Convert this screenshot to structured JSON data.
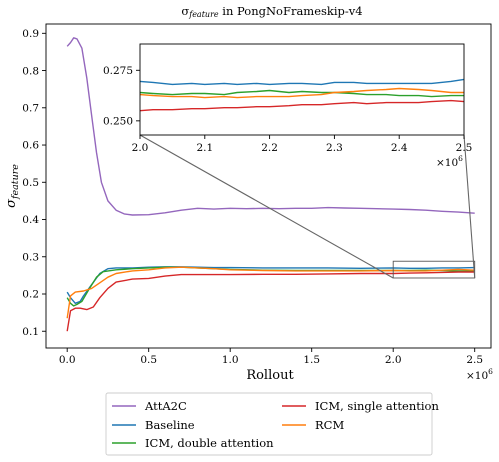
{
  "chart_data": [
    {
      "type": "line",
      "title_main": "σ",
      "title_sub": "feature",
      "title_rest": " in PongNoFrameskip-v4",
      "xlabel": "Rollout",
      "x_multiplier": "×10",
      "x_multiplier_exp": "6",
      "ylabel_main": "σ",
      "ylabel_sub": "feature",
      "xlim": [
        -0.13,
        2.6
      ],
      "ylim": [
        0.055,
        0.925
      ],
      "xticks": [
        0.0,
        0.5,
        1.0,
        1.5,
        2.0,
        2.5
      ],
      "xtick_labels": [
        "0.0",
        "0.5",
        "1.0",
        "1.5",
        "2.0",
        "2.5"
      ],
      "yticks": [
        0.1,
        0.2,
        0.3,
        0.4,
        0.5,
        0.6,
        0.7,
        0.8,
        0.9
      ],
      "ytick_labels": [
        "0.1",
        "0.2",
        "0.3",
        "0.4",
        "0.5",
        "0.6",
        "0.7",
        "0.8",
        "0.9"
      ],
      "legend_placement": "below",
      "series": [
        {
          "name": "AttA2C",
          "color": "#9467bd",
          "points": [
            [
              0.0,
              0.865
            ],
            [
              0.02,
              0.875
            ],
            [
              0.04,
              0.888
            ],
            [
              0.06,
              0.885
            ],
            [
              0.09,
              0.86
            ],
            [
              0.12,
              0.78
            ],
            [
              0.15,
              0.68
            ],
            [
              0.18,
              0.58
            ],
            [
              0.21,
              0.5
            ],
            [
              0.25,
              0.45
            ],
            [
              0.3,
              0.425
            ],
            [
              0.35,
              0.415
            ],
            [
              0.4,
              0.412
            ],
            [
              0.5,
              0.413
            ],
            [
              0.6,
              0.418
            ],
            [
              0.7,
              0.425
            ],
            [
              0.8,
              0.43
            ],
            [
              0.9,
              0.428
            ],
            [
              1.0,
              0.43
            ],
            [
              1.1,
              0.429
            ],
            [
              1.2,
              0.43
            ],
            [
              1.3,
              0.429
            ],
            [
              1.4,
              0.43
            ],
            [
              1.5,
              0.43
            ],
            [
              1.6,
              0.432
            ],
            [
              1.7,
              0.431
            ],
            [
              1.8,
              0.43
            ],
            [
              1.9,
              0.429
            ],
            [
              2.0,
              0.428
            ],
            [
              2.1,
              0.427
            ],
            [
              2.2,
              0.425
            ],
            [
              2.3,
              0.422
            ],
            [
              2.4,
              0.42
            ],
            [
              2.5,
              0.417
            ]
          ]
        },
        {
          "name": "Baseline",
          "color": "#1f77b4",
          "points": [
            [
              0.0,
              0.205
            ],
            [
              0.02,
              0.19
            ],
            [
              0.05,
              0.175
            ],
            [
              0.08,
              0.18
            ],
            [
              0.1,
              0.195
            ],
            [
              0.15,
              0.225
            ],
            [
              0.2,
              0.255
            ],
            [
              0.25,
              0.268
            ],
            [
              0.3,
              0.27
            ],
            [
              0.4,
              0.27
            ],
            [
              0.5,
              0.272
            ],
            [
              0.6,
              0.273
            ],
            [
              0.7,
              0.273
            ],
            [
              0.8,
              0.272
            ],
            [
              0.9,
              0.271
            ],
            [
              1.0,
              0.271
            ],
            [
              1.2,
              0.27
            ],
            [
              1.4,
              0.27
            ],
            [
              1.6,
              0.27
            ],
            [
              1.8,
              0.269
            ],
            [
              2.0,
              0.27
            ],
            [
              2.1,
              0.269
            ],
            [
              2.2,
              0.269
            ],
            [
              2.3,
              0.27
            ],
            [
              2.4,
              0.27
            ],
            [
              2.5,
              0.271
            ]
          ]
        },
        {
          "name": "ICM, double attention",
          "color": "#2ca02c",
          "points": [
            [
              0.0,
              0.19
            ],
            [
              0.02,
              0.175
            ],
            [
              0.04,
              0.168
            ],
            [
              0.06,
              0.172
            ],
            [
              0.09,
              0.18
            ],
            [
              0.13,
              0.21
            ],
            [
              0.18,
              0.245
            ],
            [
              0.22,
              0.26
            ],
            [
              0.3,
              0.265
            ],
            [
              0.4,
              0.268
            ],
            [
              0.5,
              0.27
            ],
            [
              0.6,
              0.272
            ],
            [
              0.7,
              0.272
            ],
            [
              0.8,
              0.27
            ],
            [
              0.9,
              0.268
            ],
            [
              1.0,
              0.266
            ],
            [
              1.2,
              0.264
            ],
            [
              1.4,
              0.263
            ],
            [
              1.6,
              0.263
            ],
            [
              1.8,
              0.263
            ],
            [
              2.0,
              0.263
            ],
            [
              2.1,
              0.263
            ],
            [
              2.2,
              0.264
            ],
            [
              2.3,
              0.263
            ],
            [
              2.4,
              0.262
            ],
            [
              2.5,
              0.262
            ]
          ]
        },
        {
          "name": "ICM, single attention",
          "color": "#d62728",
          "points": [
            [
              0.0,
              0.1
            ],
            [
              0.02,
              0.155
            ],
            [
              0.05,
              0.162
            ],
            [
              0.08,
              0.162
            ],
            [
              0.12,
              0.158
            ],
            [
              0.16,
              0.165
            ],
            [
              0.2,
              0.19
            ],
            [
              0.25,
              0.215
            ],
            [
              0.3,
              0.232
            ],
            [
              0.4,
              0.24
            ],
            [
              0.5,
              0.242
            ],
            [
              0.6,
              0.248
            ],
            [
              0.7,
              0.252
            ],
            [
              0.8,
              0.252
            ],
            [
              0.9,
              0.252
            ],
            [
              1.0,
              0.252
            ],
            [
              1.2,
              0.253
            ],
            [
              1.4,
              0.253
            ],
            [
              1.6,
              0.254
            ],
            [
              1.8,
              0.255
            ],
            [
              2.0,
              0.255
            ],
            [
              2.1,
              0.256
            ],
            [
              2.2,
              0.257
            ],
            [
              2.3,
              0.258
            ],
            [
              2.4,
              0.259
            ],
            [
              2.5,
              0.259
            ]
          ]
        },
        {
          "name": "RCM",
          "color": "#ff7f0e",
          "points": [
            [
              0.0,
              0.135
            ],
            [
              0.02,
              0.195
            ],
            [
              0.05,
              0.205
            ],
            [
              0.1,
              0.208
            ],
            [
              0.15,
              0.215
            ],
            [
              0.2,
              0.23
            ],
            [
              0.25,
              0.245
            ],
            [
              0.3,
              0.255
            ],
            [
              0.4,
              0.262
            ],
            [
              0.5,
              0.265
            ],
            [
              0.6,
              0.27
            ],
            [
              0.7,
              0.272
            ],
            [
              0.8,
              0.27
            ],
            [
              0.9,
              0.268
            ],
            [
              1.0,
              0.265
            ],
            [
              1.2,
              0.263
            ],
            [
              1.4,
              0.262
            ],
            [
              1.6,
              0.262
            ],
            [
              1.8,
              0.262
            ],
            [
              2.0,
              0.263
            ],
            [
              2.1,
              0.262
            ],
            [
              2.2,
              0.262
            ],
            [
              2.3,
              0.264
            ],
            [
              2.4,
              0.266
            ],
            [
              2.5,
              0.264
            ]
          ]
        }
      ]
    },
    {
      "type": "line",
      "role": "inset",
      "x_multiplier": "×10",
      "x_multiplier_exp": "6",
      "xlim": [
        2.0,
        2.5
      ],
      "ylim": [
        0.243,
        0.288
      ],
      "xticks": [
        2.0,
        2.1,
        2.2,
        2.3,
        2.4,
        2.5
      ],
      "xtick_labels": [
        "2.0",
        "2.1",
        "2.2",
        "2.3",
        "2.4",
        "2.5"
      ],
      "yticks": [
        0.25,
        0.275
      ],
      "ytick_labels": [
        "0.250",
        "0.275"
      ],
      "series": [
        {
          "name": "Baseline",
          "color": "#1f77b4",
          "points": [
            [
              2.0,
              0.2695
            ],
            [
              2.02,
              0.269
            ],
            [
              2.05,
              0.268
            ],
            [
              2.08,
              0.2685
            ],
            [
              2.1,
              0.268
            ],
            [
              2.13,
              0.2685
            ],
            [
              2.15,
              0.268
            ],
            [
              2.18,
              0.2685
            ],
            [
              2.2,
              0.268
            ],
            [
              2.23,
              0.2685
            ],
            [
              2.25,
              0.2685
            ],
            [
              2.28,
              0.268
            ],
            [
              2.3,
              0.269
            ],
            [
              2.33,
              0.269
            ],
            [
              2.35,
              0.2685
            ],
            [
              2.38,
              0.2685
            ],
            [
              2.4,
              0.2685
            ],
            [
              2.43,
              0.2685
            ],
            [
              2.45,
              0.2685
            ],
            [
              2.48,
              0.2695
            ],
            [
              2.5,
              0.2705
            ]
          ]
        },
        {
          "name": "ICM, double attention",
          "color": "#2ca02c",
          "points": [
            [
              2.0,
              0.264
            ],
            [
              2.02,
              0.2635
            ],
            [
              2.05,
              0.263
            ],
            [
              2.08,
              0.2635
            ],
            [
              2.1,
              0.2635
            ],
            [
              2.13,
              0.263
            ],
            [
              2.15,
              0.264
            ],
            [
              2.18,
              0.2645
            ],
            [
              2.2,
              0.265
            ],
            [
              2.23,
              0.264
            ],
            [
              2.25,
              0.2645
            ],
            [
              2.28,
              0.264
            ],
            [
              2.3,
              0.264
            ],
            [
              2.33,
              0.2635
            ],
            [
              2.35,
              0.263
            ],
            [
              2.38,
              0.263
            ],
            [
              2.4,
              0.2625
            ],
            [
              2.43,
              0.2625
            ],
            [
              2.45,
              0.262
            ],
            [
              2.48,
              0.2625
            ],
            [
              2.5,
              0.2625
            ]
          ]
        },
        {
          "name": "ICM, single attention",
          "color": "#d62728",
          "points": [
            [
              2.0,
              0.255
            ],
            [
              2.02,
              0.2555
            ],
            [
              2.05,
              0.2555
            ],
            [
              2.08,
              0.256
            ],
            [
              2.1,
              0.256
            ],
            [
              2.13,
              0.2565
            ],
            [
              2.15,
              0.2565
            ],
            [
              2.18,
              0.257
            ],
            [
              2.2,
              0.257
            ],
            [
              2.23,
              0.2575
            ],
            [
              2.25,
              0.258
            ],
            [
              2.28,
              0.258
            ],
            [
              2.3,
              0.2585
            ],
            [
              2.33,
              0.259
            ],
            [
              2.35,
              0.2585
            ],
            [
              2.38,
              0.259
            ],
            [
              2.4,
              0.259
            ],
            [
              2.43,
              0.259
            ],
            [
              2.45,
              0.2595
            ],
            [
              2.48,
              0.26
            ],
            [
              2.5,
              0.2595
            ]
          ]
        },
        {
          "name": "RCM",
          "color": "#ff7f0e",
          "points": [
            [
              2.0,
              0.263
            ],
            [
              2.02,
              0.2625
            ],
            [
              2.05,
              0.262
            ],
            [
              2.08,
              0.262
            ],
            [
              2.1,
              0.2615
            ],
            [
              2.13,
              0.262
            ],
            [
              2.15,
              0.2615
            ],
            [
              2.18,
              0.262
            ],
            [
              2.2,
              0.262
            ],
            [
              2.23,
              0.262
            ],
            [
              2.25,
              0.2625
            ],
            [
              2.28,
              0.263
            ],
            [
              2.3,
              0.264
            ],
            [
              2.33,
              0.2645
            ],
            [
              2.35,
              0.265
            ],
            [
              2.38,
              0.2655
            ],
            [
              2.4,
              0.266
            ],
            [
              2.43,
              0.2655
            ],
            [
              2.45,
              0.265
            ],
            [
              2.48,
              0.264
            ],
            [
              2.5,
              0.264
            ]
          ]
        }
      ]
    }
  ]
}
